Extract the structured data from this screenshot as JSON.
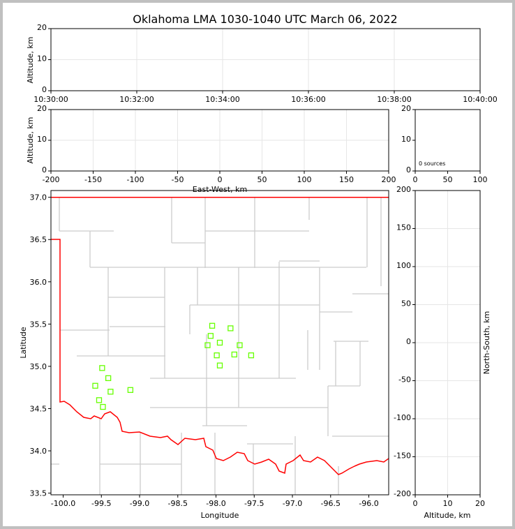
{
  "chart_data": [
    {
      "panel": "altitude-time",
      "type": "scatter",
      "title": "Oklahoma LMA 1030-1040 UTC March 06, 2022",
      "xlabel": "",
      "ylabel": "Altitude, km",
      "x_ticks": [
        "10:30:00",
        "10:32:00",
        "10:34:00",
        "10:36:00",
        "10:38:00",
        "10:40:00"
      ],
      "y_ticks": [
        0,
        10,
        20
      ],
      "ylim": [
        0,
        20
      ],
      "grid": true,
      "points": []
    },
    {
      "panel": "altitude-eastwest",
      "type": "scatter",
      "xlabel": "East-West, km",
      "ylabel": "Altitude, km",
      "xlim": [
        -200,
        200
      ],
      "x_ticks": [
        -200,
        -150,
        -100,
        -50,
        0,
        50,
        100,
        150,
        200
      ],
      "ylim": [
        0,
        20
      ],
      "y_ticks": [
        0,
        10,
        20
      ],
      "grid": true,
      "points": []
    },
    {
      "panel": "histogram",
      "type": "bar",
      "xlim": [
        0,
        100
      ],
      "x_ticks": [
        0,
        50,
        100
      ],
      "ylim": [
        0,
        20
      ],
      "y_ticks": [
        0,
        10,
        20
      ],
      "annotation": "0 sources",
      "values": []
    },
    {
      "panel": "plan-view-map",
      "type": "scatter",
      "xlabel": "Longitude",
      "ylabel": "Latitude",
      "xlim": [
        -100.16,
        -95.74
      ],
      "ylim": [
        33.48,
        37.08
      ],
      "x_ticks": [
        "-100.0",
        "-99.5",
        "-99.0",
        "-98.5",
        "-98.0",
        "-97.5",
        "-97.0",
        "-96.5",
        "-96.0"
      ],
      "y_ticks": [
        "33.5",
        "34.0",
        "34.5",
        "35.0",
        "35.5",
        "36.0",
        "36.5",
        "37.0"
      ],
      "state_border_color": "#ff0000",
      "county_color": "#cccccc",
      "station_color": "#66ff00",
      "stations": [
        [
          -98.05,
          35.48
        ],
        [
          -97.81,
          35.45
        ],
        [
          -98.07,
          35.36
        ],
        [
          -98.11,
          35.25
        ],
        [
          -97.95,
          35.28
        ],
        [
          -97.69,
          35.25
        ],
        [
          -97.99,
          35.13
        ],
        [
          -97.76,
          35.14
        ],
        [
          -97.54,
          35.13
        ],
        [
          -97.95,
          35.01
        ],
        [
          -99.49,
          34.98
        ],
        [
          -99.41,
          34.86
        ],
        [
          -99.58,
          34.77
        ],
        [
          -99.38,
          34.7
        ],
        [
          -99.12,
          34.72
        ],
        [
          -99.53,
          34.6
        ],
        [
          -99.48,
          34.52
        ]
      ],
      "sources": []
    },
    {
      "panel": "northsouth-altitude",
      "type": "scatter",
      "xlabel": "Altitude, km",
      "ylabel": "North-South, km",
      "xlim": [
        0,
        20
      ],
      "x_ticks": [
        0,
        10,
        20
      ],
      "ylim": [
        -200,
        200
      ],
      "y_ticks": [
        -200,
        -150,
        -100,
        -50,
        0,
        50,
        100,
        150,
        200
      ],
      "grid": true,
      "points": []
    }
  ]
}
